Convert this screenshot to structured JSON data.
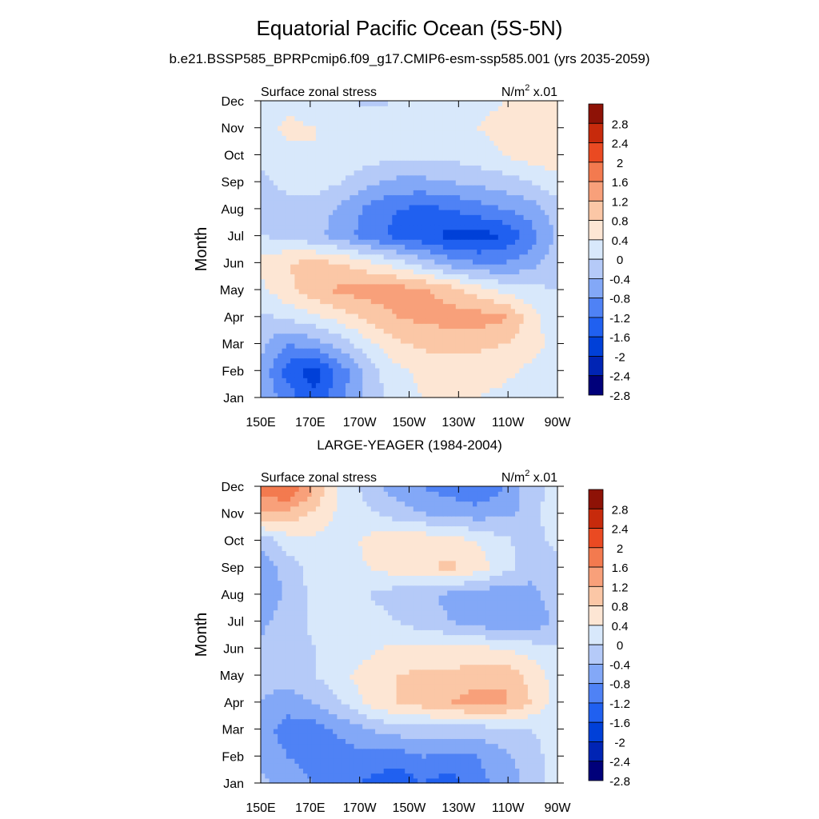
{
  "title": "Equatorial Pacific Ocean (5S-5N)",
  "subtitle": "b.e21.BSSP585_BPRPcmip6.f09_g17.CMIP6-esm-ssp585.001 (yrs 2035-2059)",
  "chart_data": [
    {
      "type": "heatmap",
      "panel_title": "",
      "left_label": "Surface zonal stress",
      "units_label": "N/m",
      "units_sup": "2",
      "units_suffix": "x.01",
      "xlabel": "",
      "ylabel": "Month",
      "x_ticks": [
        "150E",
        "170E",
        "170W",
        "150W",
        "130W",
        "110W",
        "90W"
      ],
      "y_ticks": [
        "Jan",
        "Feb",
        "Mar",
        "Apr",
        "May",
        "Jun",
        "Jul",
        "Aug",
        "Sep",
        "Oct",
        "Nov",
        "Dec"
      ],
      "colorbar_levels": [
        "2.8",
        "2.4",
        "2",
        "1.6",
        "1.2",
        "0.8",
        "0.4",
        "0",
        "-0.4",
        "-0.8",
        "-1.2",
        "-1.6",
        "-2",
        "-2.4",
        "-2.8"
      ],
      "rows_jan_to_dec_values_150E_to_90W": [
        [
          -0.4,
          -1.0,
          -1.5,
          -0.9,
          -0.3,
          0.2,
          0.4,
          0.4,
          0.4,
          0.3,
          0.2,
          0.0
        ],
        [
          -0.5,
          -1.4,
          -1.8,
          -1.0,
          -0.2,
          0.3,
          0.5,
          0.6,
          0.6,
          0.5,
          0.3,
          0.1
        ],
        [
          -0.3,
          -0.8,
          -0.6,
          -0.2,
          0.3,
          0.7,
          0.9,
          0.9,
          0.9,
          0.8,
          0.6,
          0.2
        ],
        [
          -0.1,
          0.1,
          0.3,
          0.6,
          0.9,
          1.2,
          1.3,
          1.4,
          1.4,
          1.3,
          0.6,
          0.1
        ],
        [
          0.3,
          0.7,
          1.1,
          1.3,
          1.4,
          1.4,
          1.3,
          1.0,
          0.6,
          0.3,
          0.1,
          0.0
        ],
        [
          0.5,
          0.8,
          0.9,
          0.8,
          0.5,
          0.2,
          -0.2,
          -0.6,
          -0.8,
          -0.8,
          -0.6,
          -0.1
        ],
        [
          0.0,
          -0.1,
          -0.3,
          -0.6,
          -1.0,
          -1.3,
          -1.5,
          -1.7,
          -1.8,
          -1.6,
          -1.0,
          -0.3
        ],
        [
          -0.2,
          -0.1,
          -0.2,
          -0.5,
          -0.9,
          -1.2,
          -1.3,
          -1.2,
          -1.0,
          -0.8,
          -0.6,
          -0.2
        ],
        [
          -0.1,
          0.1,
          0.2,
          0.0,
          -0.3,
          -0.5,
          -0.5,
          -0.4,
          -0.3,
          -0.2,
          0.0,
          0.3
        ],
        [
          0.1,
          0.3,
          0.4,
          0.3,
          0.2,
          0.1,
          0.1,
          0.1,
          0.2,
          0.4,
          0.6,
          0.6
        ],
        [
          0.2,
          0.5,
          0.4,
          0.3,
          0.3,
          0.2,
          0.2,
          0.3,
          0.4,
          0.5,
          0.6,
          0.6
        ],
        [
          0.1,
          0.3,
          0.2,
          0.1,
          -0.1,
          0.0,
          0.1,
          0.2,
          0.3,
          0.4,
          0.5,
          0.5
        ]
      ]
    },
    {
      "type": "heatmap",
      "panel_title": "LARGE-YEAGER (1984-2004)",
      "left_label": "Surface zonal stress",
      "units_label": "N/m",
      "units_sup": "2",
      "units_suffix": "x.01",
      "xlabel": "",
      "ylabel": "Month",
      "x_ticks": [
        "150E",
        "170E",
        "170W",
        "150W",
        "130W",
        "110W",
        "90W"
      ],
      "y_ticks": [
        "Jan",
        "Feb",
        "Mar",
        "Apr",
        "May",
        "Jun",
        "Jul",
        "Aug",
        "Sep",
        "Oct",
        "Nov",
        "Dec"
      ],
      "colorbar_levels": [
        "2.8",
        "2.4",
        "2",
        "1.6",
        "1.2",
        "0.8",
        "0.4",
        "0",
        "-0.4",
        "-0.8",
        "-1.2",
        "-1.6",
        "-2",
        "-2.4",
        "-2.8"
      ],
      "rows_jan_to_dec_values_150E_to_90W": [
        [
          -0.3,
          -0.5,
          -0.8,
          -1.0,
          -1.3,
          -1.5,
          -1.2,
          -1.4,
          -1.0,
          -0.6,
          -0.3,
          0.2
        ],
        [
          -0.5,
          -0.8,
          -1.0,
          -1.0,
          -0.9,
          -1.0,
          -0.8,
          -0.9,
          -0.8,
          -0.5,
          -0.2,
          0.2
        ],
        [
          -0.6,
          -1.0,
          -1.0,
          -0.7,
          -0.4,
          -0.2,
          -0.2,
          -0.2,
          -0.2,
          -0.1,
          0.0,
          0.2
        ],
        [
          -0.4,
          -0.6,
          -0.4,
          0.0,
          0.5,
          0.8,
          1.0,
          1.2,
          1.4,
          1.3,
          0.8,
          0.2
        ],
        [
          -0.3,
          -0.2,
          0.0,
          0.3,
          0.6,
          0.8,
          0.9,
          0.9,
          1.0,
          1.1,
          0.7,
          0.2
        ],
        [
          -0.3,
          -0.2,
          0.0,
          0.2,
          0.3,
          0.5,
          0.5,
          0.5,
          0.5,
          0.4,
          0.2,
          0.0
        ],
        [
          -0.5,
          -0.2,
          0.1,
          0.3,
          0.2,
          0.0,
          -0.2,
          -0.4,
          -0.6,
          -0.8,
          -0.7,
          -0.3
        ],
        [
          -0.8,
          -0.3,
          0.1,
          0.2,
          0.0,
          -0.2,
          -0.3,
          -0.5,
          -0.6,
          -0.7,
          -0.5,
          -0.2
        ],
        [
          -0.7,
          -0.2,
          0.2,
          0.3,
          0.4,
          0.6,
          0.7,
          0.9,
          0.6,
          0.2,
          -0.3,
          -0.4
        ],
        [
          -0.3,
          0.2,
          0.3,
          0.2,
          0.5,
          0.7,
          0.7,
          0.6,
          0.4,
          0.1,
          -0.2,
          0.2
        ],
        [
          1.2,
          1.1,
          0.7,
          0.3,
          0.1,
          -0.2,
          -0.4,
          -0.5,
          -0.6,
          -0.5,
          -0.3,
          0.4
        ],
        [
          1.8,
          2.1,
          1.2,
          0.3,
          -0.2,
          -0.6,
          -0.8,
          -1.0,
          -1.2,
          -0.8,
          -0.2,
          0.2
        ]
      ]
    }
  ],
  "colors": {
    "palette_neg_to_pos": [
      "#00007a",
      "#0024b4",
      "#0040d8",
      "#2060f0",
      "#4f82f5",
      "#83a8f7",
      "#b5caf8",
      "#d8e8fb",
      "#fde6d4",
      "#fbc7a6",
      "#f8a07a",
      "#f37a4f",
      "#ea4a22",
      "#c72a0c",
      "#8e1206"
    ]
  }
}
